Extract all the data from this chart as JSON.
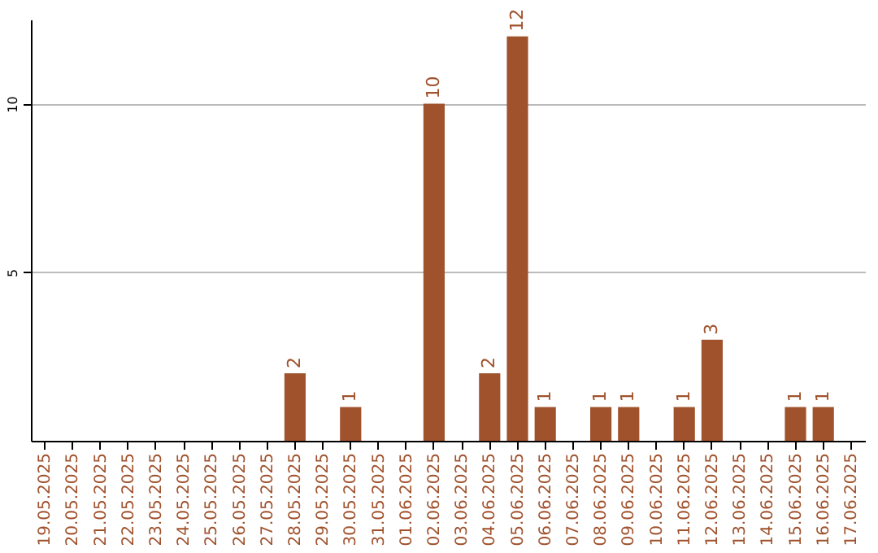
{
  "chart_data": {
    "type": "bar",
    "categories": [
      "19.05.2025",
      "20.05.2025",
      "21.05.2025",
      "22.05.2025",
      "23.05.2025",
      "24.05.2025",
      "25.05.2025",
      "26.05.2025",
      "27.05.2025",
      "28.05.2025",
      "29.05.2025",
      "30.05.2025",
      "31.05.2025",
      "01.06.2025",
      "02.06.2025",
      "03.06.2025",
      "04.06.2025",
      "05.06.2025",
      "06.06.2025",
      "07.06.2025",
      "08.06.2025",
      "09.06.2025",
      "10.06.2025",
      "11.06.2025",
      "12.06.2025",
      "13.06.2025",
      "14.06.2025",
      "15.06.2025",
      "16.06.2025",
      "17.06.2025"
    ],
    "values": [
      0,
      0,
      0,
      0,
      0,
      0,
      0,
      0,
      0,
      2,
      0,
      1,
      0,
      0,
      10,
      0,
      2,
      12,
      1,
      0,
      1,
      1,
      0,
      1,
      3,
      0,
      0,
      1,
      1,
      0
    ],
    "value_labels": [
      null,
      null,
      null,
      null,
      null,
      null,
      null,
      null,
      null,
      "2",
      null,
      "1",
      null,
      null,
      "10",
      null,
      "2",
      "12",
      "1",
      null,
      "1",
      "1",
      null,
      "1",
      "3",
      null,
      null,
      "1",
      "1",
      null
    ],
    "color": "#a0522d",
    "ylim": [
      0,
      12.5
    ],
    "yticks": [
      5,
      10
    ],
    "grid": "y"
  }
}
